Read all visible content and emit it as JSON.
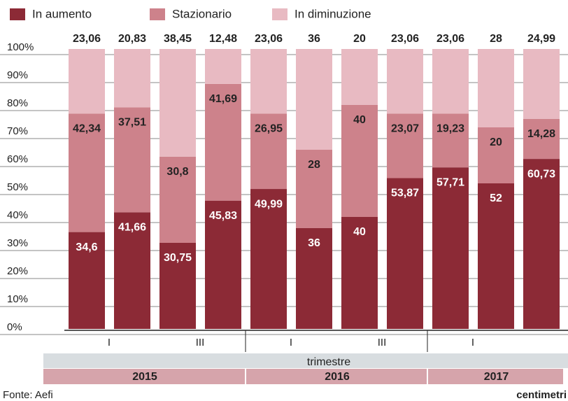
{
  "chart_data": {
    "type": "stacked_bar",
    "categories": [
      "I",
      null,
      "III",
      null,
      "I",
      null,
      "III",
      null,
      "I",
      null,
      null
    ],
    "series": [
      {
        "name": "In aumento",
        "color": "#8c2a36",
        "values": [
          34.6,
          41.66,
          30.75,
          45.83,
          49.99,
          36,
          40,
          53.87,
          57.71,
          52,
          60.73
        ],
        "value_labels": [
          "34,6",
          "41,66",
          "30,75",
          "45,83",
          "49,99",
          "36",
          "40",
          "53,87",
          "57,71",
          "52",
          "60,73"
        ]
      },
      {
        "name": "Stazionario",
        "color": "#cd828b",
        "values": [
          42.34,
          37.51,
          30.8,
          41.69,
          26.95,
          28,
          40,
          23.07,
          19.23,
          20,
          14.28
        ],
        "value_labels": [
          "42,34",
          "37,51",
          "30,8",
          "41,69",
          "26,95",
          "28",
          "40",
          "23,07",
          "19,23",
          "20",
          "14,28"
        ]
      },
      {
        "name": "In diminuzione",
        "color": "#e8bac2",
        "values": [
          23.06,
          20.83,
          38.45,
          12.48,
          23.06,
          36,
          20,
          23.06,
          23.06,
          28,
          24.99
        ],
        "value_labels": [
          "23,06",
          "20,83",
          "38,45",
          "12,48",
          "23,06",
          "36",
          "20",
          "23,06",
          "23,06",
          "28",
          "24,99"
        ]
      }
    ],
    "ylim": [
      0,
      100
    ],
    "yticks": [
      {
        "value": 0,
        "label": "0%"
      },
      {
        "value": 10,
        "label": "10%"
      },
      {
        "value": 20,
        "label": "20%"
      },
      {
        "value": 30,
        "label": "30%"
      },
      {
        "value": 40,
        "label": "40%"
      },
      {
        "value": 50,
        "label": "50%"
      },
      {
        "value": 60,
        "label": "60%"
      },
      {
        "value": 70,
        "label": "70%"
      },
      {
        "value": 80,
        "label": "80%"
      },
      {
        "value": 90,
        "label": "90%"
      },
      {
        "value": 100,
        "label": "100%"
      }
    ],
    "grid": true,
    "x_label": "trimestre",
    "groups": [
      {
        "label": "2015",
        "span": 4
      },
      {
        "label": "2016",
        "span": 4
      },
      {
        "label": "2017",
        "span": 3
      }
    ],
    "source": "Fonte: Aefi",
    "logo": "centimetri"
  }
}
